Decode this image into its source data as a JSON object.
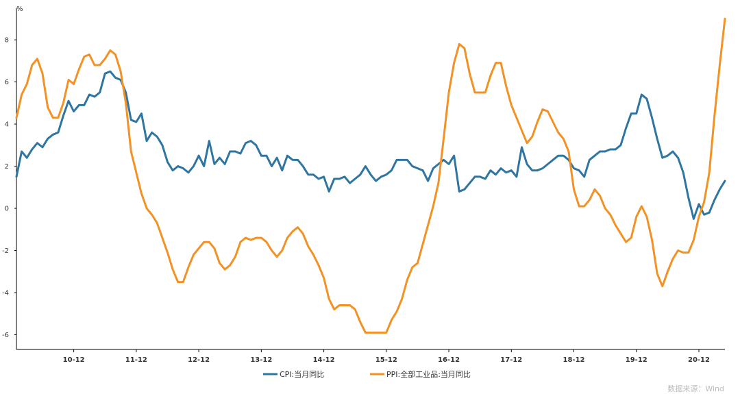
{
  "chart_data": {
    "type": "line",
    "ylabel": "%",
    "ylim": [
      -6.7,
      9.5
    ],
    "yticks": [
      -6,
      -4,
      -2,
      0,
      2,
      4,
      6,
      8
    ],
    "x_start": "2010-01",
    "x_end": "2021-05",
    "xticks": [
      "10-12",
      "11-12",
      "12-12",
      "13-12",
      "14-12",
      "15-12",
      "16-12",
      "17-12",
      "18-12",
      "19-12",
      "20-12"
    ],
    "legend_position": "bottom-center",
    "grid": false,
    "series": [
      {
        "name": "CPI:当月同比",
        "color": "#2e75a1",
        "values": [
          1.5,
          2.7,
          2.4,
          2.8,
          3.1,
          2.9,
          3.3,
          3.5,
          3.6,
          4.4,
          5.1,
          4.6,
          4.9,
          4.9,
          5.4,
          5.3,
          5.5,
          6.4,
          6.5,
          6.2,
          6.1,
          5.5,
          4.2,
          4.1,
          4.5,
          3.2,
          3.6,
          3.4,
          3.0,
          2.2,
          1.8,
          2.0,
          1.9,
          1.7,
          2.0,
          2.5,
          2.0,
          3.2,
          2.1,
          2.4,
          2.1,
          2.7,
          2.7,
          2.6,
          3.1,
          3.2,
          3.0,
          2.5,
          2.5,
          2.0,
          2.4,
          1.8,
          2.5,
          2.3,
          2.3,
          2.0,
          1.6,
          1.6,
          1.4,
          1.5,
          0.8,
          1.4,
          1.4,
          1.5,
          1.2,
          1.4,
          1.6,
          2.0,
          1.6,
          1.3,
          1.5,
          1.6,
          1.8,
          2.3,
          2.3,
          2.3,
          2.0,
          1.9,
          1.8,
          1.3,
          1.9,
          2.1,
          2.3,
          2.1,
          2.5,
          0.8,
          0.9,
          1.2,
          1.5,
          1.5,
          1.4,
          1.8,
          1.6,
          1.9,
          1.7,
          1.8,
          1.5,
          2.9,
          2.1,
          1.8,
          1.8,
          1.9,
          2.1,
          2.3,
          2.5,
          2.5,
          2.3,
          1.9,
          1.8,
          1.5,
          2.3,
          2.5,
          2.7,
          2.7,
          2.8,
          2.8,
          3.0,
          3.8,
          4.5,
          4.5,
          5.4,
          5.2,
          4.3,
          3.3,
          2.4,
          2.5,
          2.7,
          2.4,
          1.7,
          0.5,
          -0.5,
          0.2,
          -0.3,
          -0.2,
          0.4,
          0.9,
          1.3
        ]
      },
      {
        "name": "PPI:全部工业品:当月同比",
        "color": "#f39224",
        "values": [
          4.3,
          5.4,
          5.9,
          6.8,
          7.1,
          6.4,
          4.8,
          4.3,
          4.3,
          5.0,
          6.1,
          5.9,
          6.6,
          7.2,
          7.3,
          6.8,
          6.8,
          7.1,
          7.5,
          7.3,
          6.5,
          5.0,
          2.7,
          1.7,
          0.7,
          0.0,
          -0.3,
          -0.7,
          -1.4,
          -2.1,
          -2.9,
          -3.5,
          -3.5,
          -2.8,
          -2.2,
          -1.9,
          -1.6,
          -1.6,
          -1.9,
          -2.6,
          -2.9,
          -2.7,
          -2.3,
          -1.6,
          -1.4,
          -1.5,
          -1.4,
          -1.4,
          -1.6,
          -2.0,
          -2.3,
          -2.0,
          -1.4,
          -1.1,
          -0.9,
          -1.2,
          -1.8,
          -2.2,
          -2.7,
          -3.3,
          -4.3,
          -4.8,
          -4.6,
          -4.6,
          -4.6,
          -4.8,
          -5.4,
          -5.9,
          -5.9,
          -5.9,
          -5.9,
          -5.9,
          -5.3,
          -4.9,
          -4.3,
          -3.4,
          -2.8,
          -2.6,
          -1.7,
          -0.8,
          0.1,
          1.2,
          3.3,
          5.5,
          6.9,
          7.8,
          7.6,
          6.4,
          5.5,
          5.5,
          5.5,
          6.3,
          6.9,
          6.9,
          5.8,
          4.9,
          4.3,
          3.7,
          3.1,
          3.4,
          4.1,
          4.7,
          4.6,
          4.1,
          3.6,
          3.3,
          2.7,
          0.9,
          0.1,
          0.1,
          0.4,
          0.9,
          0.6,
          0.0,
          -0.3,
          -0.8,
          -1.2,
          -1.6,
          -1.4,
          -0.4,
          0.1,
          -0.4,
          -1.5,
          -3.1,
          -3.7,
          -3.0,
          -2.4,
          -2.0,
          -2.1,
          -2.1,
          -1.5,
          -0.4,
          0.3,
          1.7,
          4.4,
          6.8,
          9.0
        ]
      }
    ],
    "source": "数据来源：Wind"
  }
}
